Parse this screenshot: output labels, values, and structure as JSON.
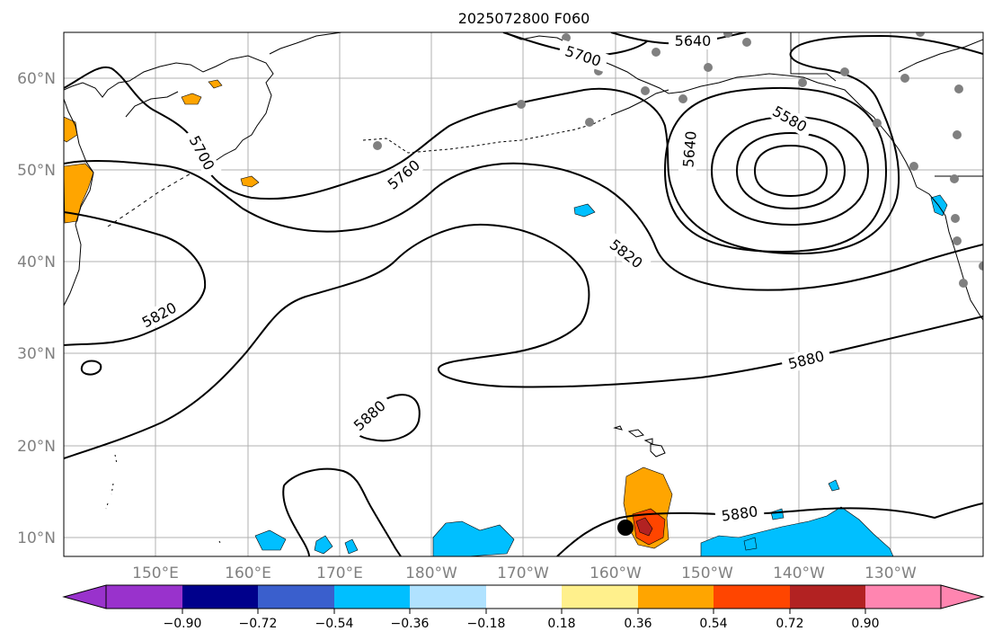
{
  "title": "2025072800 F060",
  "lat_labels": [
    "60°N",
    "50°N",
    "40°N",
    "30°N",
    "20°N",
    "10°N"
  ],
  "lon_labels": [
    "150°E",
    "160°E",
    "170°E",
    "180°W",
    "170°W",
    "160°W",
    "150°W",
    "140°W",
    "130°W"
  ],
  "contour_labels": [
    "5640",
    "5700",
    "5700",
    "5760",
    "5580",
    "5640",
    "5820",
    "5820",
    "5880",
    "5880",
    "5880"
  ],
  "colorbar": {
    "tick_labels": [
      "−0.90",
      "−0.72",
      "−0.54",
      "−0.36",
      "−0.18",
      "0.18",
      "0.36",
      "0.54",
      "0.72",
      "0.90"
    ],
    "colors": [
      "#9932cc",
      "#00008b",
      "#3a5fcd",
      "#00bfff",
      "#b0e2ff",
      "#ffffff",
      "#fff08c",
      "#ffa500",
      "#ff4500",
      "#b22222",
      "#ff85b0"
    ]
  },
  "colors": {
    "grid": "#b0b0b0",
    "coast": "#000000",
    "station": "#808080",
    "contour": "#000000"
  }
}
